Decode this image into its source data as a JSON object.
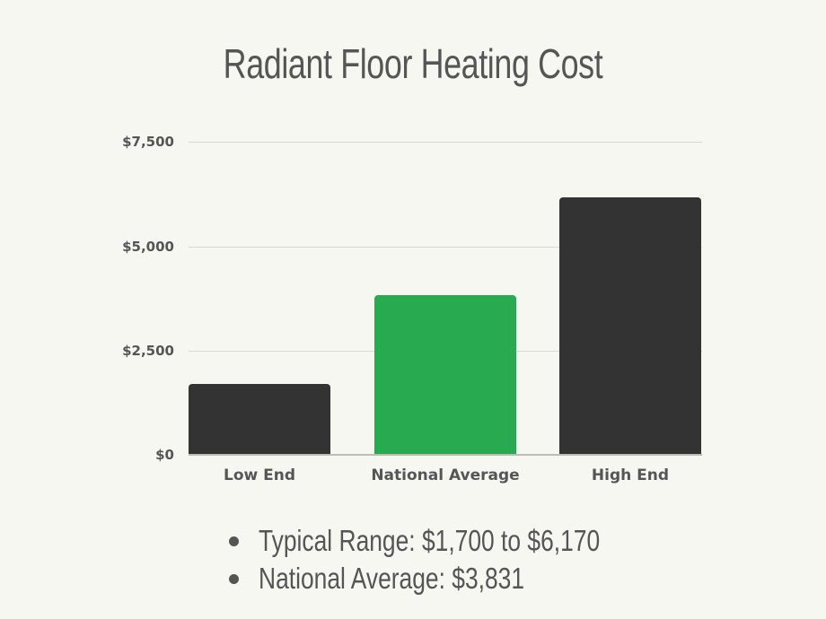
{
  "title": "Radiant Floor Heating Cost",
  "colors": {
    "background": "#f7f7f1",
    "bar_default": "#333333",
    "bar_highlight": "#28ab50",
    "text": "#555555",
    "grid": "#d9d9d2"
  },
  "y_axis": {
    "ticks": [
      "$0",
      "$2,500",
      "$5,000",
      "$7,500"
    ]
  },
  "x_axis": {
    "labels": [
      "Low End",
      "National Average",
      "High End"
    ]
  },
  "notes": [
    "Typical Range: $1,700 to $6,170",
    "National Average: $3,831"
  ],
  "chart_data": {
    "type": "bar",
    "title": "Radiant Floor Heating Cost",
    "categories": [
      "Low End",
      "National Average",
      "High End"
    ],
    "values": [
      1700,
      3831,
      6170
    ],
    "highlighted": "National Average",
    "xlabel": "",
    "ylabel": "",
    "ylim": [
      0,
      7500
    ],
    "yticks": [
      0,
      2500,
      5000,
      7500
    ],
    "ytick_labels": [
      "$0",
      "$2,500",
      "$5,000",
      "$7,500"
    ],
    "grid": true,
    "legend": "none",
    "annotations": [
      "Typical Range: $1,700 to $6,170",
      "National Average: $3,831"
    ]
  }
}
